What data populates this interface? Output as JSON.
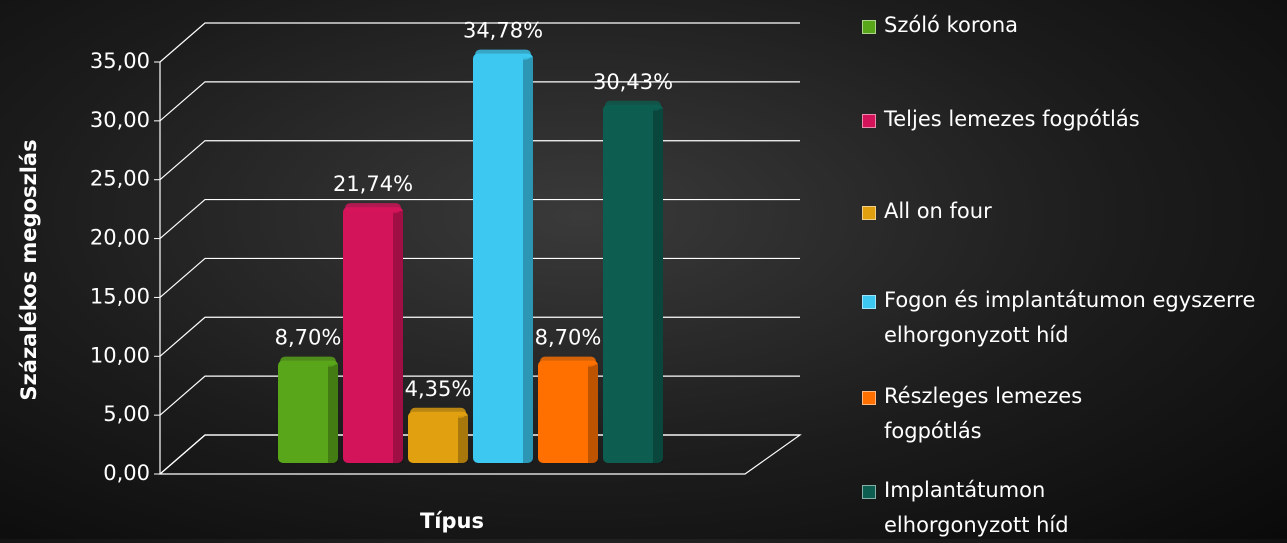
{
  "chart_data": {
    "type": "bar",
    "y_label": "Százalékos megoszlás",
    "x_label": "Típus",
    "categories": [
      null
    ],
    "series": [
      {
        "name": "Szóló korona",
        "color": "#5aa61a",
        "values": [
          8.7
        ],
        "value_labels": [
          "8,70%"
        ]
      },
      {
        "name": "Teljes lemezes fogpótlás",
        "color": "#d4145a",
        "values": [
          21.74
        ],
        "value_labels": [
          "21,74%"
        ]
      },
      {
        "name": "All on four",
        "color": "#e0a010",
        "values": [
          4.35
        ],
        "value_labels": [
          "4,35%"
        ]
      },
      {
        "name": "Fogon és implantátumon egyszerre elhorgonyzott híd",
        "color": "#3cc8f0",
        "values": [
          34.78
        ],
        "value_labels": [
          "34,78%"
        ]
      },
      {
        "name": "Részleges lemezes fogpótlás",
        "color": "#ff7000",
        "values": [
          8.7
        ],
        "value_labels": [
          "8,70%"
        ]
      },
      {
        "name": "Implantátumon elhorgonyzott híd",
        "color": "#0d5e50",
        "values": [
          30.43
        ],
        "value_labels": [
          "30,43%"
        ]
      }
    ],
    "ylim": [
      0,
      35
    ],
    "yticks": [
      {
        "value": 0,
        "label": "0,00"
      },
      {
        "value": 5,
        "label": "5,00"
      },
      {
        "value": 10,
        "label": "10,00"
      },
      {
        "value": 15,
        "label": "15,00"
      },
      {
        "value": 20,
        "label": "20,00"
      },
      {
        "value": 25,
        "label": "25,00"
      },
      {
        "value": 30,
        "label": "30,00"
      },
      {
        "value": 35,
        "label": "35,00"
      }
    ],
    "grid": true,
    "legend": "right"
  }
}
